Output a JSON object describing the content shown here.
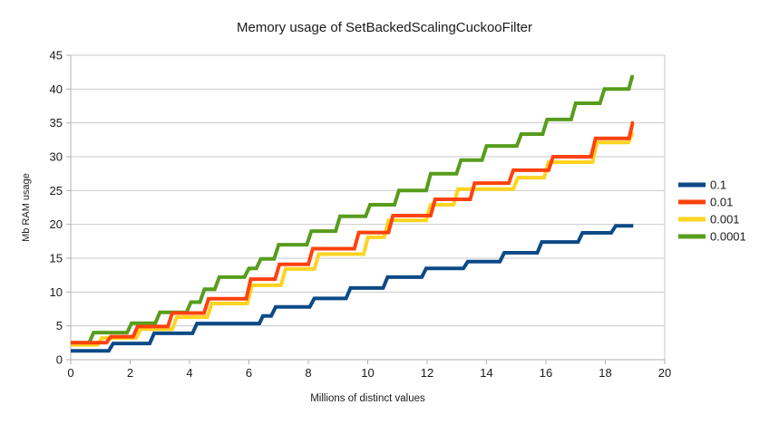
{
  "chart_data": {
    "type": "line",
    "title": "Memory usage of SetBackedScalingCuckooFilter",
    "xlabel": "Millions of distinct values",
    "ylabel": "Mb RAM usage",
    "xlim": [
      0,
      20
    ],
    "ylim": [
      0,
      45
    ],
    "xticks": [
      0,
      2,
      4,
      6,
      8,
      10,
      12,
      14,
      16,
      18,
      20
    ],
    "yticks": [
      0,
      5,
      10,
      15,
      20,
      25,
      30,
      35,
      40,
      45
    ],
    "grid": "horizontal",
    "legend_position": "right",
    "line_style": "step",
    "colors": {
      "grid": "#c9c9c9",
      "axis": "#b0b0b0",
      "text": "#1a1a1a"
    },
    "series": [
      {
        "name": "0.1",
        "color": "#0c4a87",
        "points": [
          [
            0,
            1.3
          ],
          [
            1.28,
            1.3
          ],
          [
            1.43,
            2.4
          ],
          [
            2.66,
            2.4
          ],
          [
            2.81,
            3.9
          ],
          [
            4.1,
            3.9
          ],
          [
            4.25,
            5.35
          ],
          [
            6.35,
            5.35
          ],
          [
            6.47,
            6.45
          ],
          [
            6.75,
            6.45
          ],
          [
            6.9,
            7.8
          ],
          [
            8.05,
            7.8
          ],
          [
            8.2,
            9.05
          ],
          [
            9.27,
            9.05
          ],
          [
            9.42,
            10.6
          ],
          [
            10.52,
            10.6
          ],
          [
            10.67,
            12.2
          ],
          [
            11.82,
            12.2
          ],
          [
            11.97,
            13.5
          ],
          [
            13.22,
            13.5
          ],
          [
            13.37,
            14.5
          ],
          [
            14.45,
            14.5
          ],
          [
            14.6,
            15.8
          ],
          [
            15.71,
            15.8
          ],
          [
            15.86,
            17.4
          ],
          [
            17.08,
            17.4
          ],
          [
            17.23,
            18.75
          ],
          [
            18.2,
            18.75
          ],
          [
            18.35,
            19.8
          ],
          [
            18.94,
            19.8
          ]
        ]
      },
      {
        "name": "0.01",
        "color": "#ff420e",
        "points": [
          [
            0,
            2.5
          ],
          [
            1.2,
            2.5
          ],
          [
            1.35,
            3.4
          ],
          [
            2.1,
            3.4
          ],
          [
            2.25,
            4.9
          ],
          [
            3.27,
            4.9
          ],
          [
            3.42,
            6.9
          ],
          [
            4.49,
            6.9
          ],
          [
            4.64,
            9.0
          ],
          [
            5.91,
            9.0
          ],
          [
            6.06,
            11.9
          ],
          [
            6.88,
            11.9
          ],
          [
            7.03,
            14.1
          ],
          [
            8.0,
            14.1
          ],
          [
            8.15,
            16.4
          ],
          [
            9.55,
            16.4
          ],
          [
            9.7,
            18.8
          ],
          [
            10.7,
            18.8
          ],
          [
            10.85,
            21.3
          ],
          [
            12.12,
            21.3
          ],
          [
            12.27,
            23.7
          ],
          [
            13.45,
            23.7
          ],
          [
            13.6,
            26.1
          ],
          [
            14.75,
            26.1
          ],
          [
            14.9,
            28.0
          ],
          [
            16.09,
            28.0
          ],
          [
            16.24,
            30.0
          ],
          [
            17.52,
            30.0
          ],
          [
            17.67,
            32.7
          ],
          [
            18.8,
            32.7
          ],
          [
            18.92,
            35.0
          ],
          [
            18.96,
            35.0
          ]
        ]
      },
      {
        "name": "0.001",
        "color": "#ffd320",
        "points": [
          [
            0,
            2.2
          ],
          [
            0.9,
            2.2
          ],
          [
            1.05,
            3.2
          ],
          [
            2.2,
            3.2
          ],
          [
            2.35,
            4.5
          ],
          [
            3.42,
            4.5
          ],
          [
            3.57,
            6.3
          ],
          [
            4.6,
            6.3
          ],
          [
            4.75,
            8.3
          ],
          [
            5.95,
            8.3
          ],
          [
            6.1,
            11.0
          ],
          [
            7.08,
            11.0
          ],
          [
            7.23,
            13.4
          ],
          [
            8.2,
            13.4
          ],
          [
            8.35,
            15.6
          ],
          [
            9.86,
            15.6
          ],
          [
            10.01,
            18.1
          ],
          [
            10.55,
            18.1
          ],
          [
            10.7,
            20.6
          ],
          [
            11.97,
            20.6
          ],
          [
            12.12,
            22.9
          ],
          [
            12.89,
            22.9
          ],
          [
            13.04,
            25.2
          ],
          [
            14.9,
            25.2
          ],
          [
            15.05,
            26.9
          ],
          [
            15.94,
            26.9
          ],
          [
            16.09,
            29.2
          ],
          [
            17.57,
            29.2
          ],
          [
            17.72,
            32.1
          ],
          [
            18.78,
            32.1
          ],
          [
            18.9,
            33.4
          ],
          [
            18.96,
            33.4
          ]
        ]
      },
      {
        "name": "0.0001",
        "color": "#579d1c",
        "points": [
          [
            0,
            2.5
          ],
          [
            0.62,
            2.5
          ],
          [
            0.77,
            4.0
          ],
          [
            1.9,
            4.0
          ],
          [
            2.05,
            5.4
          ],
          [
            2.85,
            5.4
          ],
          [
            3.0,
            7.0
          ],
          [
            3.9,
            7.0
          ],
          [
            4.05,
            8.5
          ],
          [
            4.35,
            8.5
          ],
          [
            4.5,
            10.4
          ],
          [
            4.85,
            10.4
          ],
          [
            5.0,
            12.2
          ],
          [
            5.85,
            12.2
          ],
          [
            6.0,
            13.5
          ],
          [
            6.25,
            13.5
          ],
          [
            6.4,
            14.9
          ],
          [
            6.85,
            14.9
          ],
          [
            7.0,
            17.0
          ],
          [
            7.95,
            17.0
          ],
          [
            8.1,
            19.0
          ],
          [
            8.92,
            19.0
          ],
          [
            9.07,
            21.2
          ],
          [
            9.93,
            21.2
          ],
          [
            10.08,
            22.9
          ],
          [
            10.9,
            22.9
          ],
          [
            11.05,
            25.0
          ],
          [
            11.97,
            25.0
          ],
          [
            12.12,
            27.5
          ],
          [
            12.99,
            27.5
          ],
          [
            13.14,
            29.5
          ],
          [
            13.85,
            29.5
          ],
          [
            14.0,
            31.6
          ],
          [
            15.02,
            31.6
          ],
          [
            15.17,
            33.35
          ],
          [
            15.89,
            33.35
          ],
          [
            16.04,
            35.5
          ],
          [
            16.85,
            35.5
          ],
          [
            17.0,
            37.9
          ],
          [
            17.82,
            37.9
          ],
          [
            17.97,
            40.0
          ],
          [
            18.79,
            40.0
          ],
          [
            18.9,
            41.8
          ],
          [
            18.96,
            41.8
          ]
        ]
      }
    ]
  }
}
